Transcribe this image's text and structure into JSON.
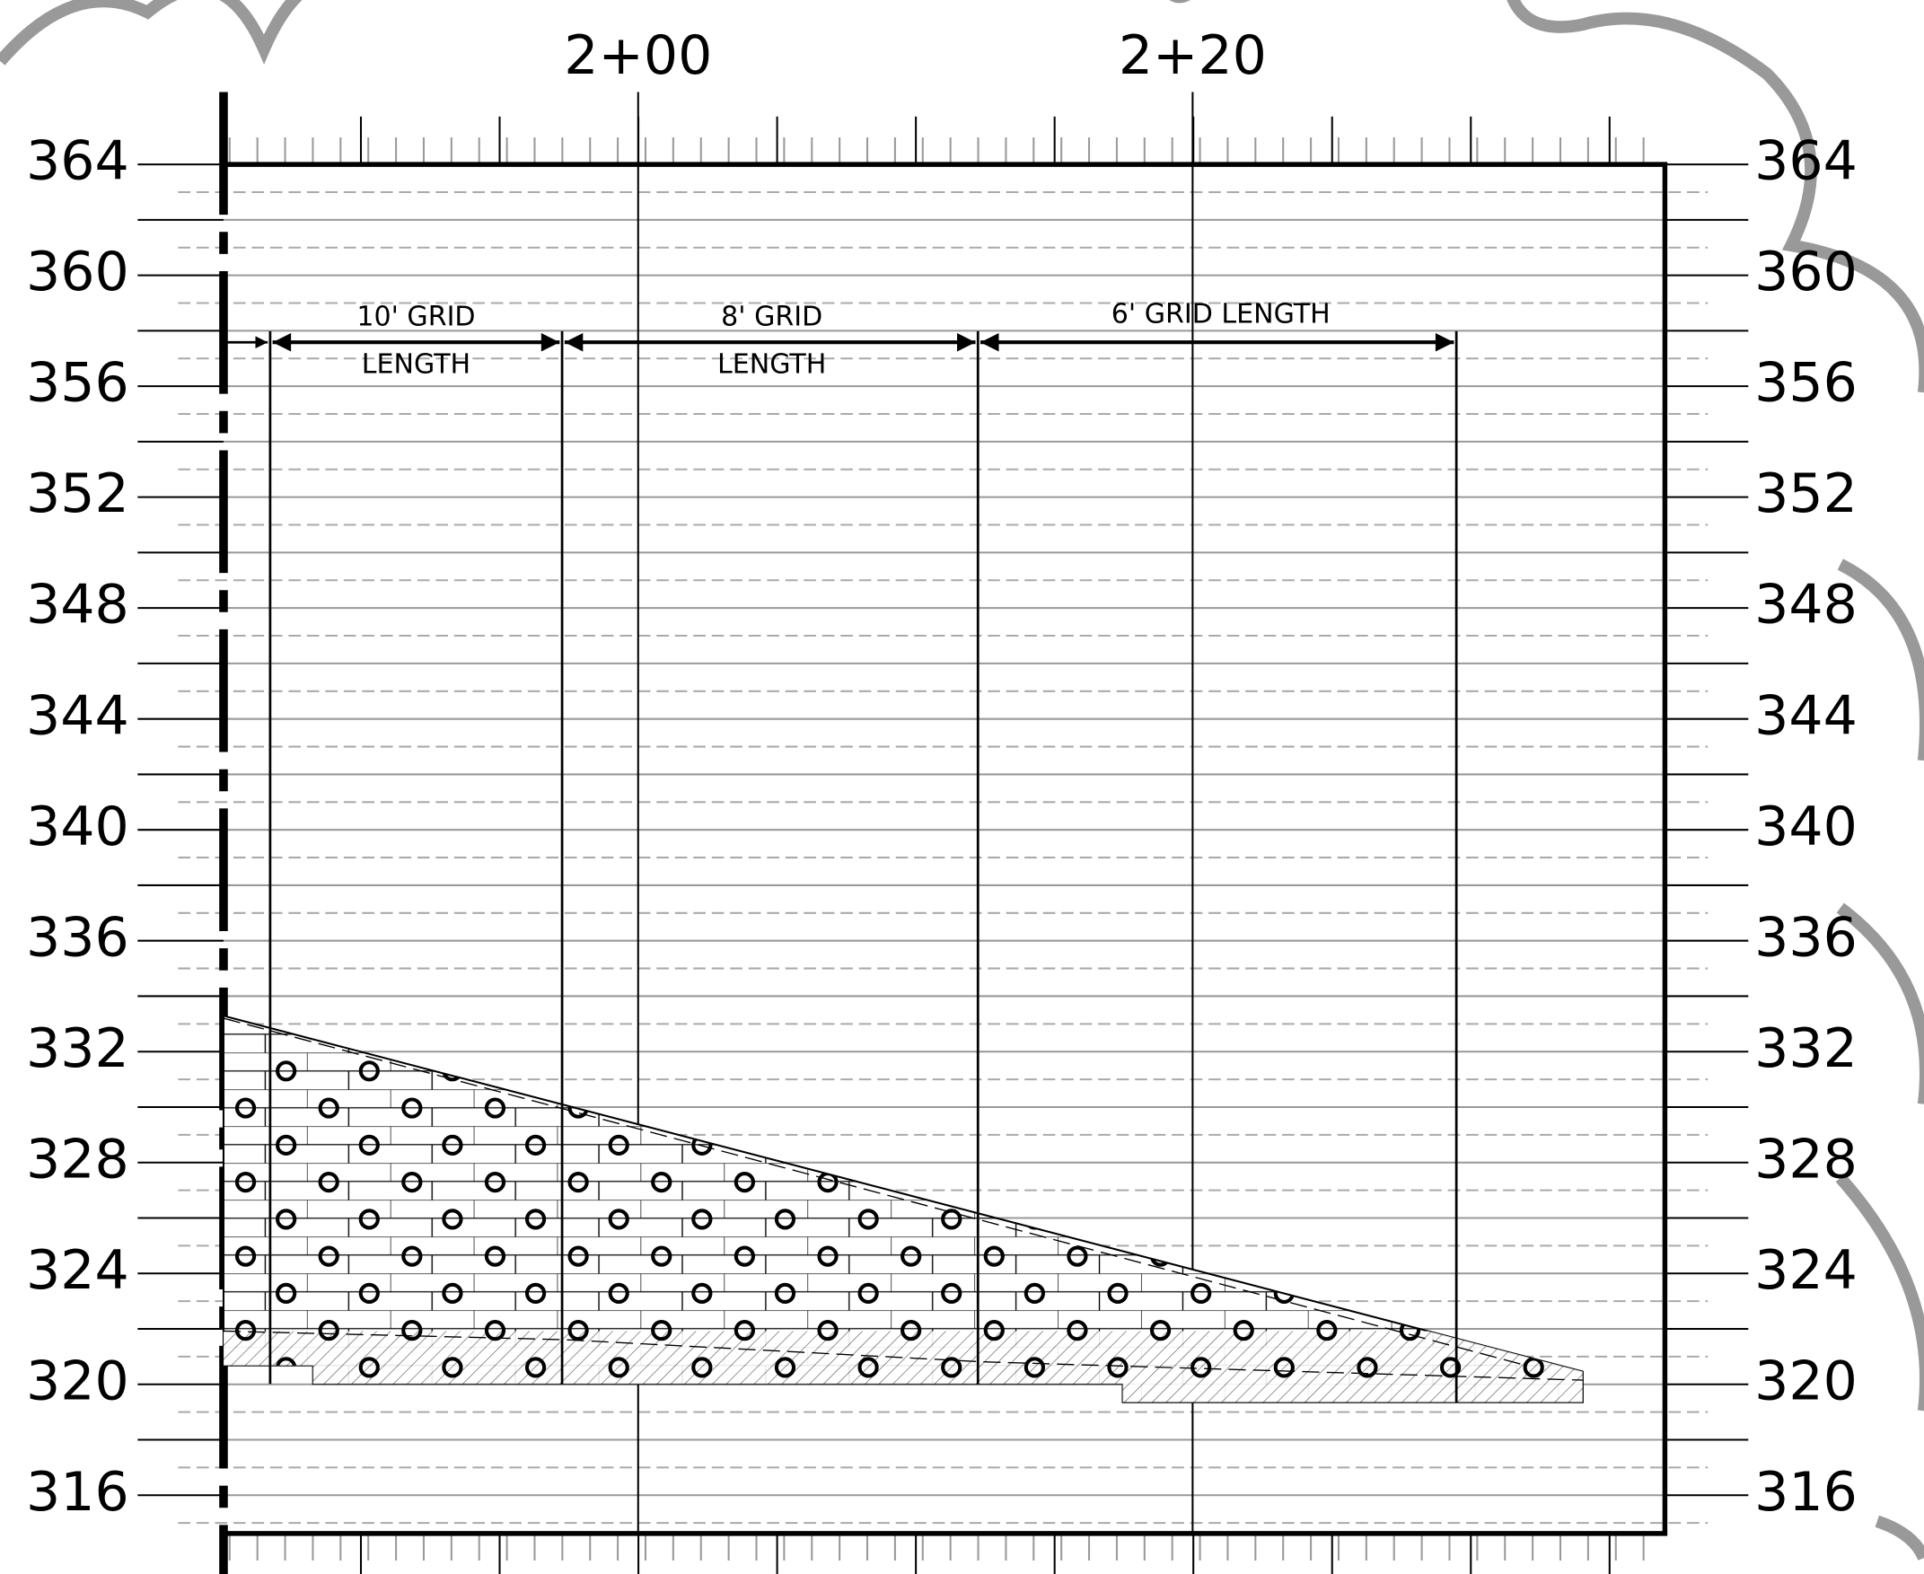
{
  "stations": [
    "2+00",
    "2+20"
  ],
  "elevations_left": [
    364,
    360,
    356,
    352,
    348,
    344,
    340,
    336,
    332,
    328,
    324,
    320,
    316
  ],
  "elevations_right": [
    364,
    360,
    356,
    352,
    348,
    344,
    340,
    336,
    332,
    328,
    324,
    320,
    316
  ],
  "annotations": [
    "10' GRID",
    "LENGTH",
    "8' GRID",
    "LENGTH",
    "6' GRID LENGTH"
  ]
}
